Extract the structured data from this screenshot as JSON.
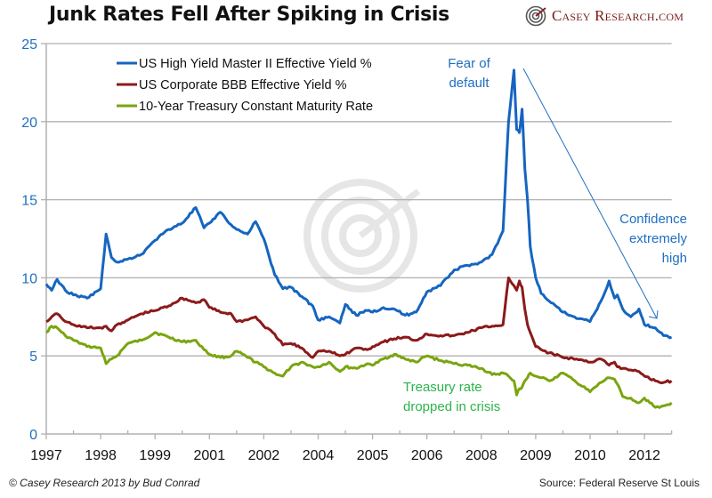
{
  "header": {
    "title": "Junk Rates Fell After Spiking in Crisis",
    "logo_text": "Casey Research.com"
  },
  "footer": {
    "credit": "© Casey Research 2013 by Bud Conrad",
    "source": "Source: Federal Reserve St Louis"
  },
  "colors": {
    "high_yield": "#1565c0",
    "bbb": "#8b1a1a",
    "treasury": "#7aa510",
    "axis_label": "#1f6fc0",
    "annotation_blue": "#1f6fc0",
    "annotation_green": "#2db34a",
    "grid": "#b0b0b0"
  },
  "chart_data": {
    "type": "line",
    "title": "Junk Rates Fell After Spiking in Crisis",
    "xlabel": "",
    "ylabel": "",
    "ylim": [
      0,
      25
    ],
    "yticks": [
      "0",
      "5",
      "10",
      "15",
      "20",
      "25"
    ],
    "categories": [
      "1997",
      "1998",
      "1999",
      "2001",
      "2002",
      "2004",
      "2005",
      "2006",
      "2008",
      "2009",
      "2010",
      "2012"
    ],
    "x_range": [
      0,
      11.5
    ],
    "grid": true,
    "legend_position": "top-left",
    "legend": [
      {
        "label": "US High Yield Master II Effective Yield %",
        "series": "high_yield"
      },
      {
        "label": "US Corporate BBB Effective Yield %",
        "series": "bbb"
      },
      {
        "label": "10-Year Treasury Constant Maturity Rate",
        "series": "treasury"
      }
    ],
    "x": [
      0,
      0.1,
      0.2,
      0.35,
      0.5,
      0.75,
      1.0,
      1.1,
      1.2,
      1.3,
      1.5,
      1.75,
      2.0,
      2.25,
      2.5,
      2.75,
      2.9,
      3.0,
      3.2,
      3.4,
      3.5,
      3.7,
      3.85,
      4.0,
      4.2,
      4.35,
      4.5,
      4.7,
      4.9,
      5.0,
      5.2,
      5.4,
      5.5,
      5.7,
      5.9,
      6.0,
      6.2,
      6.4,
      6.6,
      6.8,
      7.0,
      7.25,
      7.5,
      7.75,
      8.0,
      8.2,
      8.4,
      8.5,
      8.6,
      8.65,
      8.7,
      8.75,
      8.8,
      8.85,
      8.9,
      9.0,
      9.1,
      9.25,
      9.5,
      9.75,
      10.0,
      10.2,
      10.35,
      10.45,
      10.5,
      10.6,
      10.75,
      10.9,
      11.0,
      11.2,
      11.35,
      11.5
    ],
    "series": [
      {
        "name": "US High Yield Master II Effective Yield %",
        "key": "high_yield",
        "values": [
          9.6,
          9.2,
          9.9,
          9.2,
          8.9,
          8.7,
          9.3,
          12.8,
          11.3,
          11.0,
          11.2,
          11.5,
          12.4,
          13.1,
          13.5,
          14.5,
          13.2,
          13.5,
          14.2,
          13.4,
          13.1,
          12.8,
          13.6,
          12.5,
          10.2,
          9.3,
          9.4,
          8.8,
          8.2,
          7.3,
          7.5,
          7.1,
          8.3,
          7.6,
          7.9,
          7.8,
          8.1,
          8.0,
          7.6,
          7.8,
          9.1,
          9.5,
          10.5,
          10.8,
          11.0,
          11.5,
          13.0,
          20.0,
          23.3,
          19.5,
          19.3,
          20.8,
          17.0,
          15.0,
          12.0,
          10.0,
          9.0,
          8.5,
          7.8,
          7.4,
          7.2,
          8.5,
          9.8,
          8.7,
          8.9,
          8.0,
          7.5,
          8.0,
          7.0,
          6.8,
          6.3,
          6.2
        ]
      },
      {
        "name": "US Corporate BBB Effective Yield %",
        "key": "bbb",
        "values": [
          7.2,
          7.5,
          7.7,
          7.2,
          7.0,
          6.8,
          6.8,
          6.9,
          6.6,
          7.0,
          7.3,
          7.7,
          7.9,
          8.2,
          8.7,
          8.4,
          8.6,
          8.1,
          7.8,
          7.7,
          7.2,
          7.3,
          7.5,
          6.9,
          6.4,
          5.7,
          5.8,
          5.5,
          4.9,
          5.3,
          5.3,
          5.0,
          5.1,
          5.5,
          5.4,
          5.6,
          5.9,
          6.1,
          6.2,
          6.0,
          6.4,
          6.3,
          6.3,
          6.5,
          6.8,
          6.9,
          7.0,
          10.0,
          9.5,
          9.2,
          9.8,
          9.4,
          8.0,
          7.0,
          6.5,
          5.6,
          5.4,
          5.2,
          4.9,
          4.8,
          4.6,
          4.8,
          4.4,
          4.6,
          4.3,
          4.2,
          4.1,
          4.0,
          3.7,
          3.4,
          3.3,
          3.4
        ]
      },
      {
        "name": "10-Year Treasury Constant Maturity Rate",
        "key": "treasury",
        "values": [
          6.5,
          6.9,
          6.8,
          6.3,
          6.0,
          5.6,
          5.5,
          4.5,
          4.8,
          5.0,
          5.8,
          6.0,
          6.5,
          6.2,
          5.9,
          6.0,
          5.4,
          5.1,
          4.9,
          5.0,
          5.3,
          4.9,
          4.6,
          4.3,
          3.9,
          3.7,
          4.3,
          4.6,
          4.3,
          4.3,
          4.6,
          4.0,
          4.3,
          4.2,
          4.5,
          4.4,
          4.8,
          5.1,
          4.8,
          4.6,
          5.0,
          4.7,
          4.5,
          4.4,
          4.2,
          3.8,
          3.9,
          3.7,
          3.4,
          2.5,
          2.9,
          3.0,
          3.4,
          3.6,
          3.9,
          3.7,
          3.6,
          3.4,
          3.9,
          3.3,
          2.7,
          3.3,
          3.6,
          3.5,
          3.2,
          2.4,
          2.3,
          2.0,
          2.3,
          1.7,
          1.8,
          2.0
        ]
      }
    ],
    "annotations": [
      {
        "text": [
          "Fear of",
          "default"
        ],
        "color_key": "annotation_blue",
        "x": 8.65,
        "y": 23.5
      },
      {
        "text": [
          "Confidence",
          "extremely",
          "high"
        ],
        "color_key": "annotation_blue",
        "x": 11.2,
        "y": 12.3
      },
      {
        "text": [
          "Treasury rate",
          "dropped in crisis"
        ],
        "color_key": "annotation_green",
        "x": 7.9,
        "y": 3.5
      }
    ],
    "arrow": {
      "from": [
        8.85,
        23.1
      ],
      "to": [
        11.2,
        7.2
      ],
      "color_key": "annotation_blue"
    }
  }
}
